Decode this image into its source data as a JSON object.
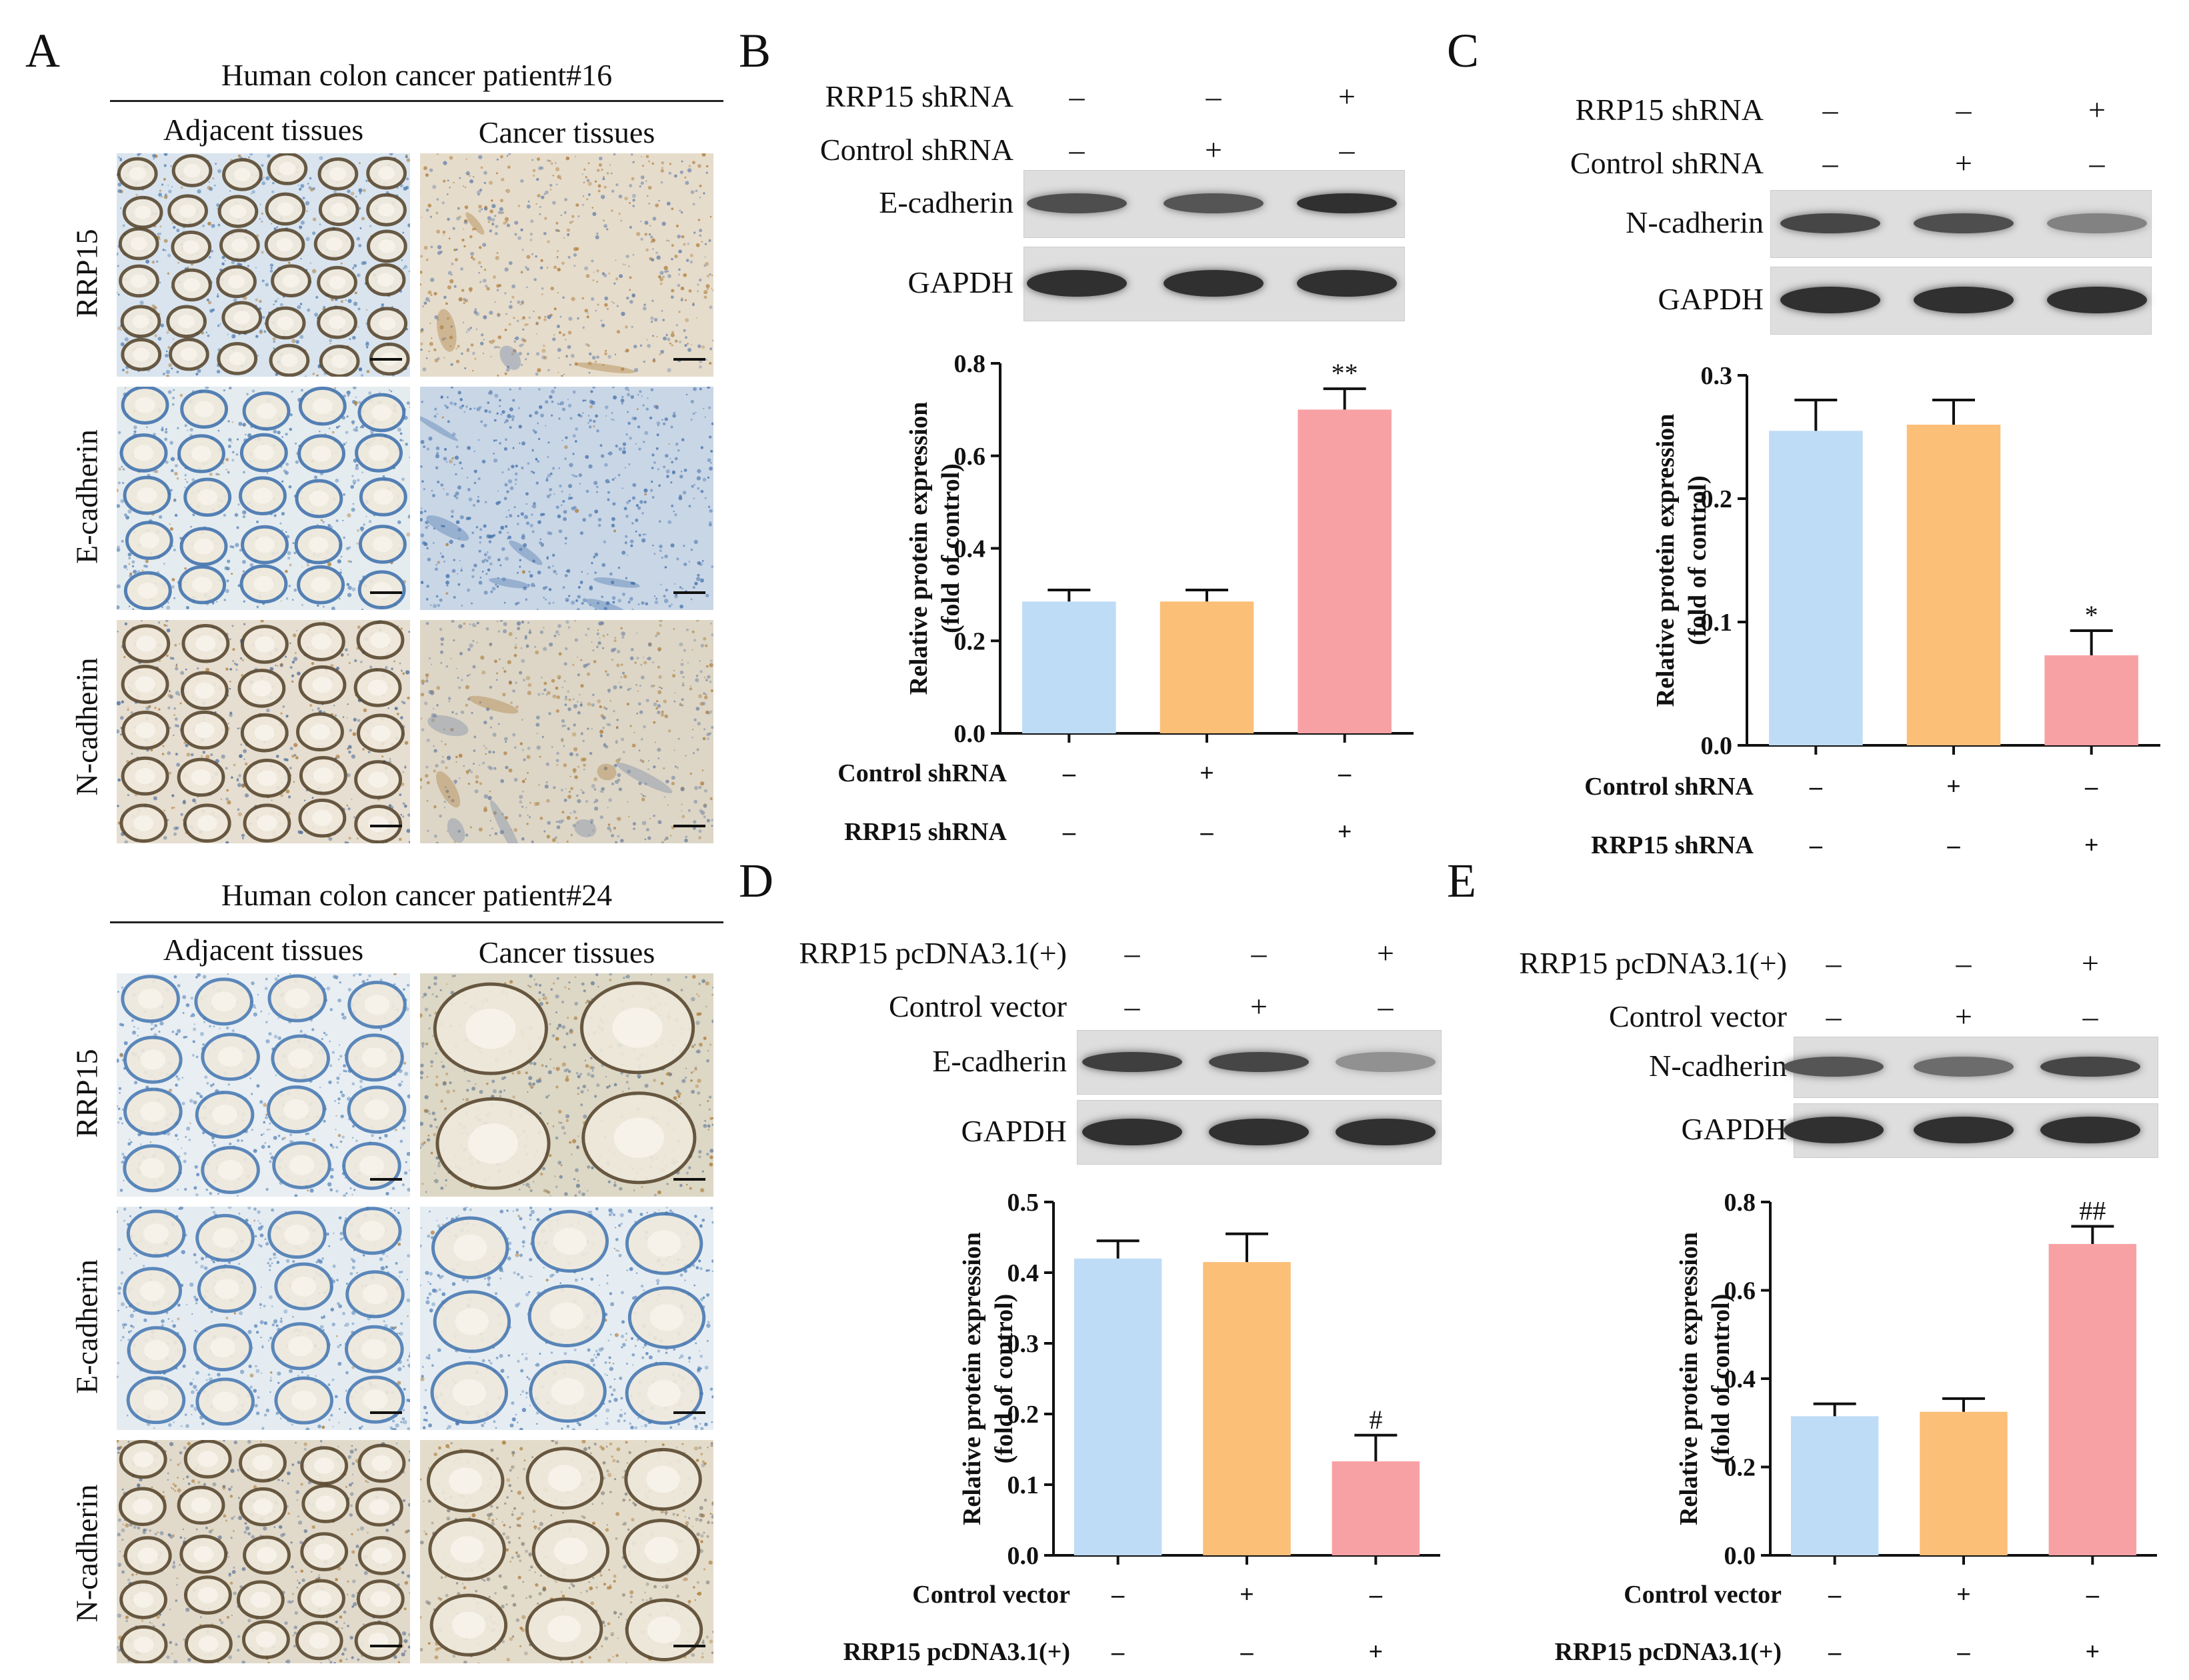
{
  "panel_labels": {
    "A": "A",
    "B": "B",
    "C": "C",
    "D": "D",
    "E": "E"
  },
  "ihc": {
    "patient1_title": "Human colon cancer patient#16",
    "patient2_title": "Human colon cancer patient#24",
    "col_adjacent": "Adjacent tissues",
    "col_cancer": "Cancer tissues",
    "rows": [
      "RRP15",
      "E-cadherin",
      "N-cadherin"
    ]
  },
  "blots": {
    "B": {
      "rows": [
        {
          "label": "RRP15 shRNA",
          "signs": [
            "–",
            "–",
            "+"
          ]
        },
        {
          "label": "Control shRNA",
          "signs": [
            "–",
            "+",
            "–"
          ]
        }
      ],
      "bands": [
        "E-cadherin",
        "GAPDH"
      ],
      "intensity": [
        0.75,
        0.7,
        0.95
      ]
    },
    "C": {
      "rows": [
        {
          "label": "RRP15 shRNA",
          "signs": [
            "–",
            "–",
            "+"
          ]
        },
        {
          "label": "Control shRNA",
          "signs": [
            "–",
            "+",
            "–"
          ]
        }
      ],
      "bands": [
        "N-cadherin",
        "GAPDH"
      ],
      "intensity": [
        0.8,
        0.75,
        0.4
      ]
    },
    "D": {
      "rows": [
        {
          "label": "RRP15 pcDNA3.1(+)",
          "signs": [
            "–",
            "–",
            "+"
          ]
        },
        {
          "label": "Control vector",
          "signs": [
            "–",
            "+",
            "–"
          ]
        }
      ],
      "bands": [
        "E-cadherin",
        "GAPDH"
      ],
      "intensity": [
        0.85,
        0.8,
        0.3
      ]
    },
    "E": {
      "rows": [
        {
          "label": "RRP15 pcDNA3.1(+)",
          "signs": [
            "–",
            "–",
            "+"
          ]
        },
        {
          "label": "Control vector",
          "signs": [
            "–",
            "+",
            "–"
          ]
        }
      ],
      "bands": [
        "N-cadherin",
        "GAPDH"
      ],
      "intensity": [
        0.7,
        0.55,
        0.8
      ]
    }
  },
  "colors": {
    "blue": "#bfdcf6",
    "orange": "#fbbf78",
    "pink": "#f8a1a5"
  },
  "chart_data": [
    {
      "id": "B",
      "type": "bar",
      "ylabel": "Relative protein expression (fold of control)",
      "ylim": [
        0,
        0.8
      ],
      "yticks": [
        "0.0",
        "0.2",
        "0.4",
        "0.6",
        "0.8"
      ],
      "values": [
        0.285,
        0.285,
        0.7
      ],
      "errors": [
        0.025,
        0.025,
        0.045
      ],
      "annotations": [
        "",
        "",
        "**"
      ],
      "cond_rows": [
        {
          "label": "Control shRNA",
          "signs": [
            "–",
            "+",
            "–"
          ]
        },
        {
          "label": "RRP15 shRNA",
          "signs": [
            "–",
            "–",
            "+"
          ]
        }
      ]
    },
    {
      "id": "C",
      "type": "bar",
      "ylabel": "Relative protein expression (fold of control)",
      "ylim": [
        0,
        0.3
      ],
      "yticks": [
        "0.0",
        "0.1",
        "0.2",
        "0.3"
      ],
      "values": [
        0.255,
        0.26,
        0.073
      ],
      "errors": [
        0.025,
        0.02,
        0.02
      ],
      "annotations": [
        "",
        "",
        "*"
      ],
      "cond_rows": [
        {
          "label": "Control shRNA",
          "signs": [
            "–",
            "+",
            "–"
          ]
        },
        {
          "label": "RRP15 shRNA",
          "signs": [
            "–",
            "–",
            "+"
          ]
        }
      ]
    },
    {
      "id": "D",
      "type": "bar",
      "ylabel": "Relative protein expression (fold of control)",
      "ylim": [
        0,
        0.5
      ],
      "yticks": [
        "0.0",
        "0.1",
        "0.2",
        "0.3",
        "0.4",
        "0.5"
      ],
      "values": [
        0.42,
        0.415,
        0.133
      ],
      "errors": [
        0.025,
        0.04,
        0.037
      ],
      "annotations": [
        "",
        "",
        "#"
      ],
      "cond_rows": [
        {
          "label": "Control vector",
          "signs": [
            "–",
            "+",
            "–"
          ]
        },
        {
          "label": "RRP15 pcDNA3.1(+)",
          "signs": [
            "–",
            "–",
            "+"
          ]
        }
      ]
    },
    {
      "id": "E",
      "type": "bar",
      "ylabel": "Relative protein expression (fold of control)",
      "ylim": [
        0,
        0.8
      ],
      "yticks": [
        "0.0",
        "0.2",
        "0.4",
        "0.6",
        "0.8"
      ],
      "values": [
        0.315,
        0.325,
        0.705
      ],
      "errors": [
        0.028,
        0.03,
        0.04
      ],
      "annotations": [
        "",
        "",
        "##"
      ],
      "cond_rows": [
        {
          "label": "Control vector",
          "signs": [
            "–",
            "+",
            "–"
          ]
        },
        {
          "label": "RRP15 pcDNA3.1(+)",
          "signs": [
            "–",
            "–",
            "+"
          ]
        }
      ]
    }
  ]
}
